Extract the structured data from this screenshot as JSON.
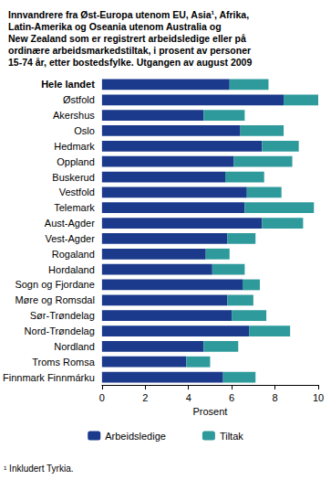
{
  "chart_data": {
    "type": "bar",
    "orientation": "horizontal",
    "stacked": true,
    "title": "Innvandrere fra Øst-Europa utenom EU, Asia¹, Afrika,\nLatin-Amerika og Oseania utenom Australia og\nNew Zealand som er registrert arbeidsledige eller på\nordinære arbeidsmarkedstiltak, i prosent av personer\n15-74 år, etter bostedsfylke. Utgangen av august 2009",
    "x_label": "Prosent",
    "footnote": "¹ Inkludert Tyrkia.",
    "categories": [
      "Hele landet",
      "Østfold",
      "Akershus",
      "Oslo",
      "Hedmark",
      "Oppland",
      "Buskerud",
      "Vestfold",
      "Telemark",
      "Aust-Agder",
      "Vest-Agder",
      "Rogaland",
      "Hordaland",
      "Sogn og Fjordane",
      "Møre og Romsdal",
      "Sør-Trøndelag",
      "Nord-Trøndelag",
      "Nordland",
      "Troms Romsa",
      "Finnmark Finnmárku"
    ],
    "series": [
      {
        "name": "Arbeidsledige",
        "color": "#1b3a8c",
        "values": [
          5.9,
          8.4,
          4.7,
          6.4,
          7.4,
          6.1,
          5.7,
          6.7,
          6.6,
          7.4,
          5.8,
          4.8,
          5.1,
          6.5,
          5.8,
          6.0,
          6.8,
          4.7,
          3.9,
          5.6
        ]
      },
      {
        "name": "Tiltak",
        "color": "#2e9a9c",
        "values": [
          1.8,
          1.6,
          1.9,
          2.0,
          1.7,
          2.7,
          1.8,
          1.6,
          3.2,
          1.9,
          1.3,
          1.1,
          1.5,
          0.8,
          1.2,
          1.6,
          1.9,
          1.6,
          1.1,
          1.5
        ]
      }
    ],
    "xlim": [
      0,
      10
    ],
    "xticks": [
      0,
      2,
      4,
      6,
      8,
      10
    ],
    "grid": false,
    "legend": "bottom"
  }
}
